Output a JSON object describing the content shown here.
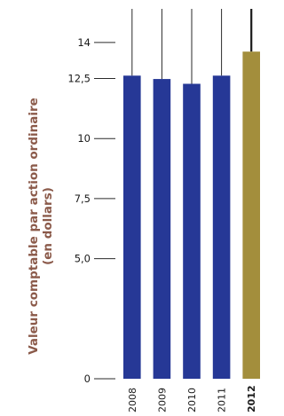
{
  "chart_data": {
    "type": "bar",
    "ylabel_line1": "Valeur comptable par action ordinaire",
    "ylabel_line2": "(en dollars)",
    "categories": [
      "2008",
      "2009",
      "2010",
      "2011",
      "2012"
    ],
    "values": [
      12.62,
      12.48,
      12.28,
      12.62,
      13.62
    ],
    "highlight": [
      "2012"
    ],
    "yticks": [
      {
        "value": 0,
        "label": "0"
      },
      {
        "value": 5,
        "label": "5,0"
      },
      {
        "value": 7.5,
        "label": "7,5"
      },
      {
        "value": 10,
        "label": "10"
      },
      {
        "value": 12.5,
        "label": "12,5"
      },
      {
        "value": 14,
        "label": "14"
      }
    ],
    "ylim": [
      0,
      15.4
    ],
    "grid": false,
    "colors": {
      "bar": "#263896",
      "highlight": "#a38e3c",
      "ylabel": "#8b5a4a",
      "line": "#2a2a2a"
    }
  }
}
